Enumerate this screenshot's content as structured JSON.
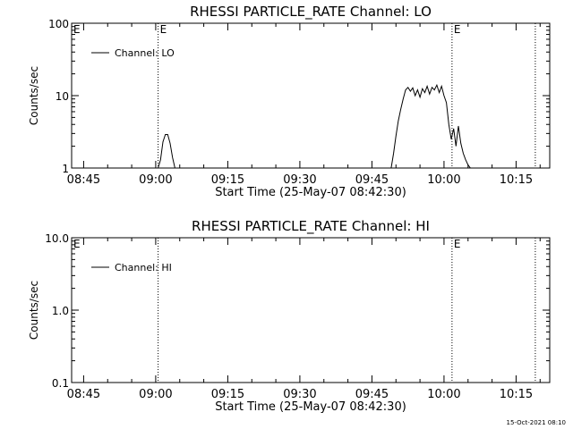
{
  "footer": {
    "timestamp": "15-Oct-2021 08:10"
  },
  "chart_data": [
    {
      "type": "line",
      "title": "RHESSI PARTICLE_RATE Channel: LO",
      "xlabel": "Start Time (25-May-07 08:42:30)",
      "ylabel": "Counts/sec",
      "yscale": "log",
      "ylim": [
        1,
        100
      ],
      "yticks": [
        1,
        10,
        100
      ],
      "ytick_labels": [
        "1",
        "10",
        "100"
      ],
      "xlim": [
        "08:42:30",
        "10:22:00"
      ],
      "xticks": [
        "08:45",
        "09:00",
        "09:15",
        "09:30",
        "09:45",
        "10:00",
        "10:15"
      ],
      "grid": false,
      "legend": {
        "position": "top-left",
        "entries": [
          "Channel: LO"
        ]
      },
      "markers": [
        {
          "time": "09:00:30",
          "label": "E"
        },
        {
          "time": "10:01:40",
          "label": "E"
        },
        {
          "time": "10:19:00",
          "label": ""
        },
        {
          "time": "08:42:30",
          "label": "E"
        }
      ],
      "series": [
        {
          "name": "Channel: LO",
          "x": [
            "09:00:30",
            "09:01:00",
            "09:01:30",
            "09:02:00",
            "09:02:30",
            "09:03:00",
            "09:03:30",
            "09:04:00",
            "09:49:00",
            "09:49:30",
            "09:50:00",
            "09:50:30",
            "09:51:00",
            "09:51:30",
            "09:52:00",
            "09:52:30",
            "09:53:00",
            "09:53:30",
            "09:54:00",
            "09:54:30",
            "09:55:00",
            "09:55:30",
            "09:56:00",
            "09:56:30",
            "09:57:00",
            "09:57:30",
            "09:58:00",
            "09:58:30",
            "09:59:00",
            "09:59:30",
            "10:00:00",
            "10:00:30",
            "10:01:00",
            "10:01:30",
            "10:02:00",
            "10:02:30",
            "10:03:00",
            "10:03:30",
            "10:04:00",
            "10:04:30",
            "10:05:00",
            "10:05:30"
          ],
          "values": [
            1,
            1.3,
            2.3,
            2.9,
            2.9,
            2.2,
            1.4,
            1,
            1,
            1.6,
            2.8,
            4.5,
            6.5,
            9,
            12,
            13,
            11.5,
            12.8,
            10,
            12,
            9.5,
            12.5,
            11,
            13.5,
            10.5,
            13,
            12,
            14,
            11,
            13.5,
            10,
            8,
            4,
            2.5,
            3.5,
            2,
            3.8,
            2.2,
            1.6,
            1.3,
            1.1,
            1
          ]
        }
      ]
    },
    {
      "type": "line",
      "title": "RHESSI PARTICLE_RATE Channel: HI",
      "xlabel": "Start Time (25-May-07 08:42:30)",
      "ylabel": "Counts/sec",
      "yscale": "log",
      "ylim": [
        0.1,
        10
      ],
      "yticks": [
        0.1,
        1,
        10
      ],
      "ytick_labels": [
        "0.1",
        "1.0",
        "10.0"
      ],
      "xlim": [
        "08:42:30",
        "10:22:00"
      ],
      "xticks": [
        "08:45",
        "09:00",
        "09:15",
        "09:30",
        "09:45",
        "10:00",
        "10:15"
      ],
      "grid": false,
      "legend": {
        "position": "top-left",
        "entries": [
          "Channel: HI"
        ]
      },
      "markers": [
        {
          "time": "09:00:30",
          "label": ""
        },
        {
          "time": "10:01:40",
          "label": "E"
        },
        {
          "time": "10:19:00",
          "label": ""
        },
        {
          "time": "08:42:30",
          "label": "E"
        }
      ],
      "series": [
        {
          "name": "Channel: HI",
          "x": [],
          "values": []
        }
      ]
    }
  ]
}
